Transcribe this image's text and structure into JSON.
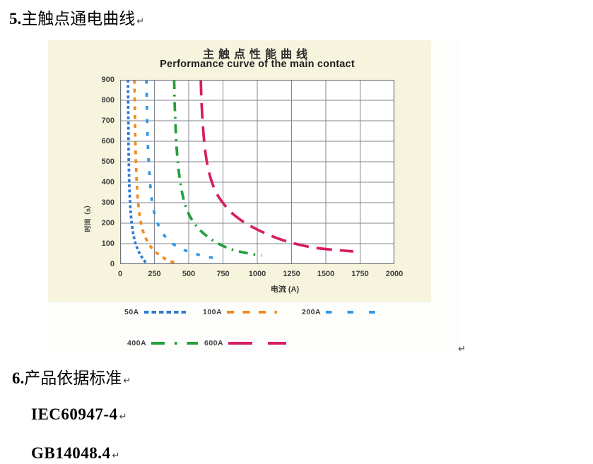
{
  "page": {
    "heading5": {
      "num": "5.",
      "text": "主触点通电曲线"
    },
    "heading6": {
      "num": "6.",
      "text": "产品依据标准"
    },
    "standards": [
      "IEC60947-4",
      "GB14048.4"
    ],
    "paragraph_mark": "↵"
  },
  "chart_data": {
    "type": "line",
    "title_cn": "主触点性能曲线",
    "title_en": "Performance curve of the main contact",
    "xlabel": "电流 (A)",
    "ylabel": "时间（s）",
    "xlim": [
      0,
      2000
    ],
    "ylim": [
      0,
      900
    ],
    "x_ticks": [
      0,
      250,
      500,
      750,
      1000,
      1250,
      1500,
      1750,
      2000
    ],
    "y_ticks": [
      0,
      100,
      200,
      300,
      400,
      500,
      600,
      700,
      800,
      900
    ],
    "grid": true,
    "legend_position": "bottom",
    "colors": {
      "panel_bg": "#f7f4de",
      "grid": "#81868e",
      "plot_border": "#6f747c",
      "tick_text": "#3c3c3c"
    },
    "series": [
      {
        "name": "50A",
        "color": "#2e7ad2",
        "dash": "dense-dash",
        "points": [
          [
            57,
            900
          ],
          [
            58,
            800
          ],
          [
            60,
            700
          ],
          [
            61,
            600
          ],
          [
            63,
            500
          ],
          [
            66,
            400
          ],
          [
            70,
            330
          ],
          [
            76,
            260
          ],
          [
            85,
            195
          ],
          [
            98,
            140
          ],
          [
            115,
            95
          ],
          [
            140,
            55
          ],
          [
            168,
            25
          ],
          [
            195,
            0
          ]
        ]
      },
      {
        "name": "100A",
        "color": "#f08c1e",
        "dash": "dash",
        "points": [
          [
            104,
            900
          ],
          [
            106,
            800
          ],
          [
            108,
            700
          ],
          [
            111,
            600
          ],
          [
            115,
            500
          ],
          [
            121,
            400
          ],
          [
            130,
            310
          ],
          [
            144,
            230
          ],
          [
            165,
            165
          ],
          [
            195,
            115
          ],
          [
            235,
            75
          ],
          [
            285,
            45
          ],
          [
            345,
            20
          ],
          [
            405,
            6
          ]
        ]
      },
      {
        "name": "200A",
        "color": "#2f97e8",
        "dash": "sparse-dash",
        "points": [
          [
            192,
            900
          ],
          [
            194,
            800
          ],
          [
            197,
            700
          ],
          [
            201,
            600
          ],
          [
            208,
            500
          ],
          [
            218,
            400
          ],
          [
            232,
            310
          ],
          [
            255,
            235
          ],
          [
            290,
            175
          ],
          [
            340,
            125
          ],
          [
            400,
            92
          ],
          [
            470,
            68
          ],
          [
            565,
            47
          ],
          [
            680,
            30
          ]
        ]
      },
      {
        "name": "400A",
        "color": "#22a03c",
        "dash": "dash-dash-dot",
        "points": [
          [
            394,
            900
          ],
          [
            397,
            800
          ],
          [
            402,
            700
          ],
          [
            409,
            600
          ],
          [
            420,
            500
          ],
          [
            436,
            410
          ],
          [
            458,
            330
          ],
          [
            490,
            260
          ],
          [
            535,
            205
          ],
          [
            600,
            155
          ],
          [
            690,
            110
          ],
          [
            800,
            75
          ],
          [
            915,
            55
          ],
          [
            1030,
            42
          ]
        ]
      },
      {
        "name": "600A",
        "color": "#d81d63",
        "dash": "long-dash",
        "points": [
          [
            588,
            900
          ],
          [
            593,
            800
          ],
          [
            601,
            700
          ],
          [
            613,
            600
          ],
          [
            632,
            500
          ],
          [
            660,
            420
          ],
          [
            700,
            350
          ],
          [
            760,
            290
          ],
          [
            840,
            235
          ],
          [
            940,
            190
          ],
          [
            1060,
            150
          ],
          [
            1220,
            110
          ],
          [
            1420,
            80
          ],
          [
            1700,
            62
          ]
        ]
      }
    ]
  }
}
